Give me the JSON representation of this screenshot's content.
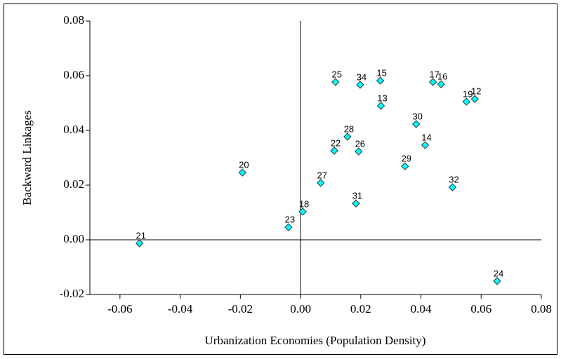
{
  "chart_data": {
    "type": "scatter",
    "x_label": "Urbanization Economies (Population Density)",
    "y_label": "Backward Linkages",
    "labels": [
      "21",
      "20",
      "23",
      "18",
      "27",
      "22",
      "25",
      "28",
      "26",
      "31",
      "34",
      "15",
      "13",
      "29",
      "30",
      "14",
      "17",
      "16",
      "32",
      "19",
      "12",
      "24"
    ],
    "x": [
      -0.0535,
      -0.0193,
      -0.004,
      0.0007,
      0.0067,
      0.0112,
      0.0116,
      0.0156,
      0.0193,
      0.0184,
      0.0198,
      0.0265,
      0.0267,
      0.0347,
      0.0384,
      0.0414,
      0.044,
      0.0467,
      0.0505,
      0.0551,
      0.0579,
      0.0653
    ],
    "values": [
      -0.0013,
      0.0246,
      0.0046,
      0.0103,
      0.0208,
      0.0326,
      0.0577,
      0.0377,
      0.0323,
      0.0133,
      0.0567,
      0.0582,
      0.049,
      0.0269,
      0.0423,
      0.0346,
      0.0577,
      0.0569,
      0.0192,
      0.0505,
      0.0515,
      -0.0151
    ],
    "color": "#00ffff",
    "xlim": [
      -0.07,
      0.08
    ],
    "xticks": [
      -0.06,
      -0.04,
      -0.02,
      {
        "value": 0,
        "label": "0.00"
      },
      0.02,
      0.04,
      0.06,
      0.08
    ],
    "ylim": [
      -0.02,
      0.08
    ],
    "yticks": [
      -0.02,
      {
        "value": 0,
        "label": "0.00"
      },
      0.02,
      0.04,
      0.06,
      0.08
    ]
  }
}
